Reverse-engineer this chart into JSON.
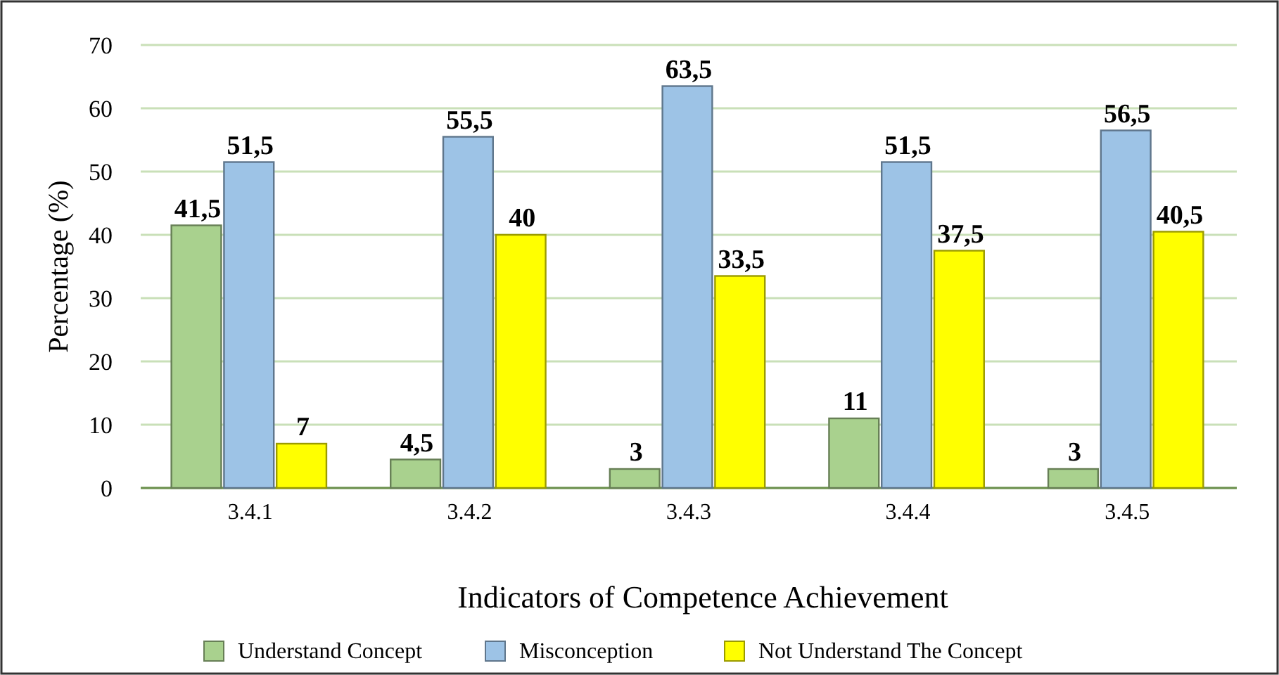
{
  "chart_data": {
    "type": "bar",
    "xlabel": "Indicators of Competence Achievement",
    "ylabel": "Percentage (%)",
    "categories": [
      "3.4.1",
      "3.4.2",
      "3.4.3",
      "3.4.4",
      "3.4.5"
    ],
    "series": [
      {
        "name": "Understand Concept",
        "color": "#a9d18e",
        "values": [
          41.5,
          4.5,
          3,
          11,
          3
        ],
        "value_labels": [
          "41,5",
          "4,5",
          "3",
          "11",
          "3"
        ]
      },
      {
        "name": "Misconception",
        "color": "#9dc3e6",
        "values": [
          51.5,
          55.5,
          63.5,
          51.5,
          56.5
        ],
        "value_labels": [
          "51,5",
          "55,5",
          "63,5",
          "51,5",
          "56,5"
        ]
      },
      {
        "name": "Not Understand The Concept",
        "color": "#ffff00",
        "values": [
          7,
          40,
          33.5,
          37.5,
          40.5
        ],
        "value_labels": [
          "7",
          "40",
          "33,5",
          "37,5",
          "40,5"
        ]
      }
    ],
    "ylim": [
      0,
      70
    ],
    "yticks": [
      0,
      10,
      20,
      30,
      40,
      50,
      60,
      70
    ],
    "grid": "y",
    "legend": "bottom"
  }
}
